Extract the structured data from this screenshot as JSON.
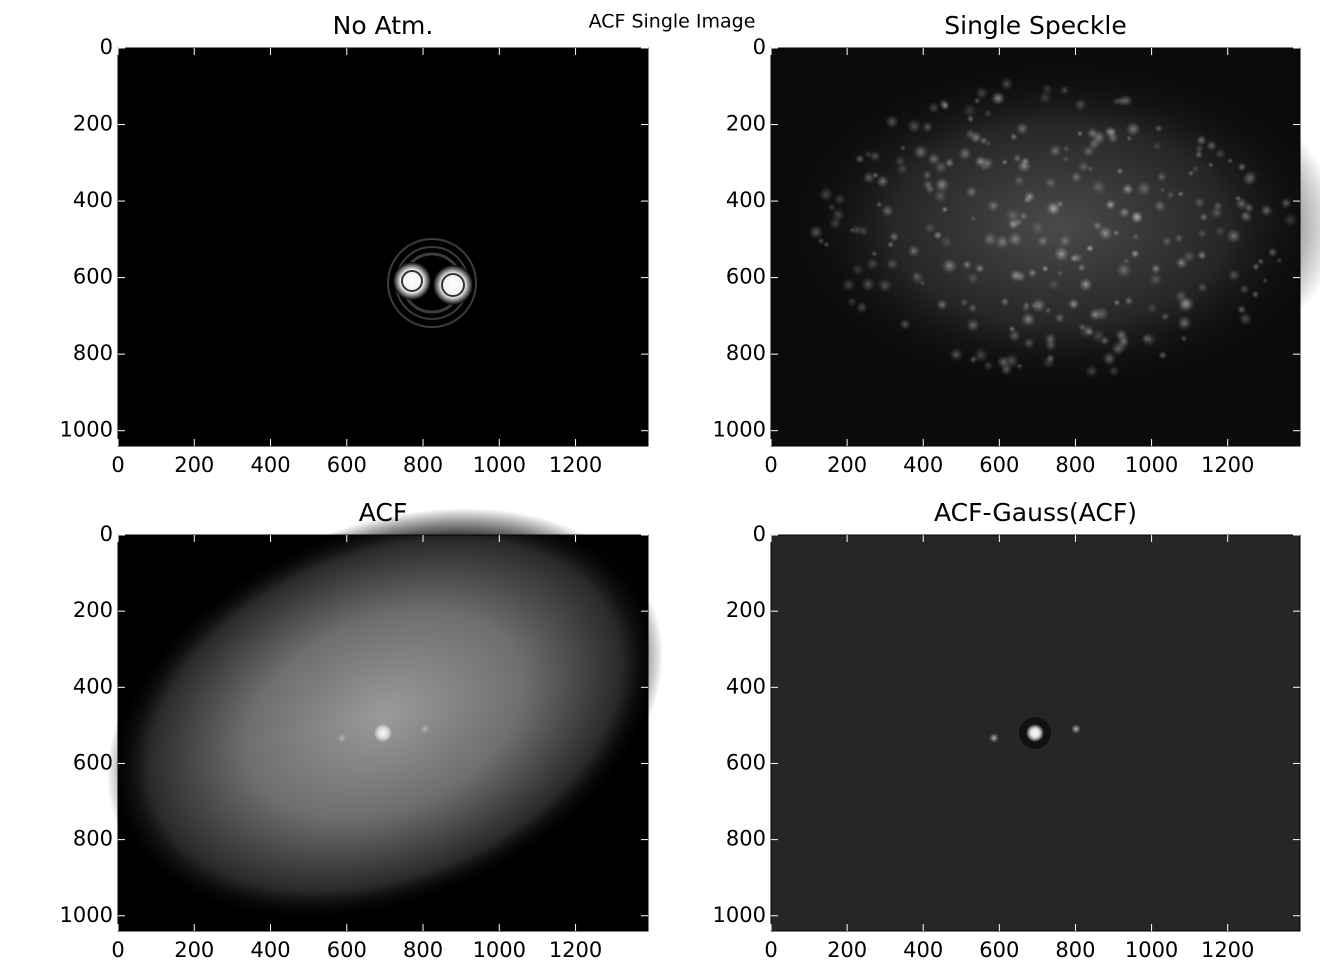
{
  "title": "ACF Single Image",
  "chart_data": [
    {
      "type": "image",
      "title": "No Atm.",
      "xlim": [
        0,
        1390
      ],
      "ylim": [
        1040,
        0
      ],
      "xticks": [
        0,
        200,
        400,
        600,
        800,
        1000,
        1200
      ],
      "yticks": [
        0,
        200,
        400,
        600,
        800,
        1000
      ]
    },
    {
      "type": "image",
      "title": "Single Speckle",
      "xlim": [
        0,
        1390
      ],
      "ylim": [
        1040,
        0
      ],
      "xticks": [
        0,
        200,
        400,
        600,
        800,
        1000,
        1200
      ],
      "yticks": [
        0,
        200,
        400,
        600,
        800,
        1000
      ]
    },
    {
      "type": "image",
      "title": "ACF",
      "xlim": [
        0,
        1390
      ],
      "ylim": [
        1040,
        0
      ],
      "xticks": [
        0,
        200,
        400,
        600,
        800,
        1000,
        1200
      ],
      "yticks": [
        0,
        200,
        400,
        600,
        800,
        1000
      ]
    },
    {
      "type": "image",
      "title": "ACF-Gauss(ACF)",
      "xlim": [
        0,
        1390
      ],
      "ylim": [
        1040,
        0
      ],
      "xticks": [
        0,
        200,
        400,
        600,
        800,
        1000,
        1200
      ],
      "yticks": [
        0,
        200,
        400,
        600,
        800,
        1000
      ]
    }
  ]
}
